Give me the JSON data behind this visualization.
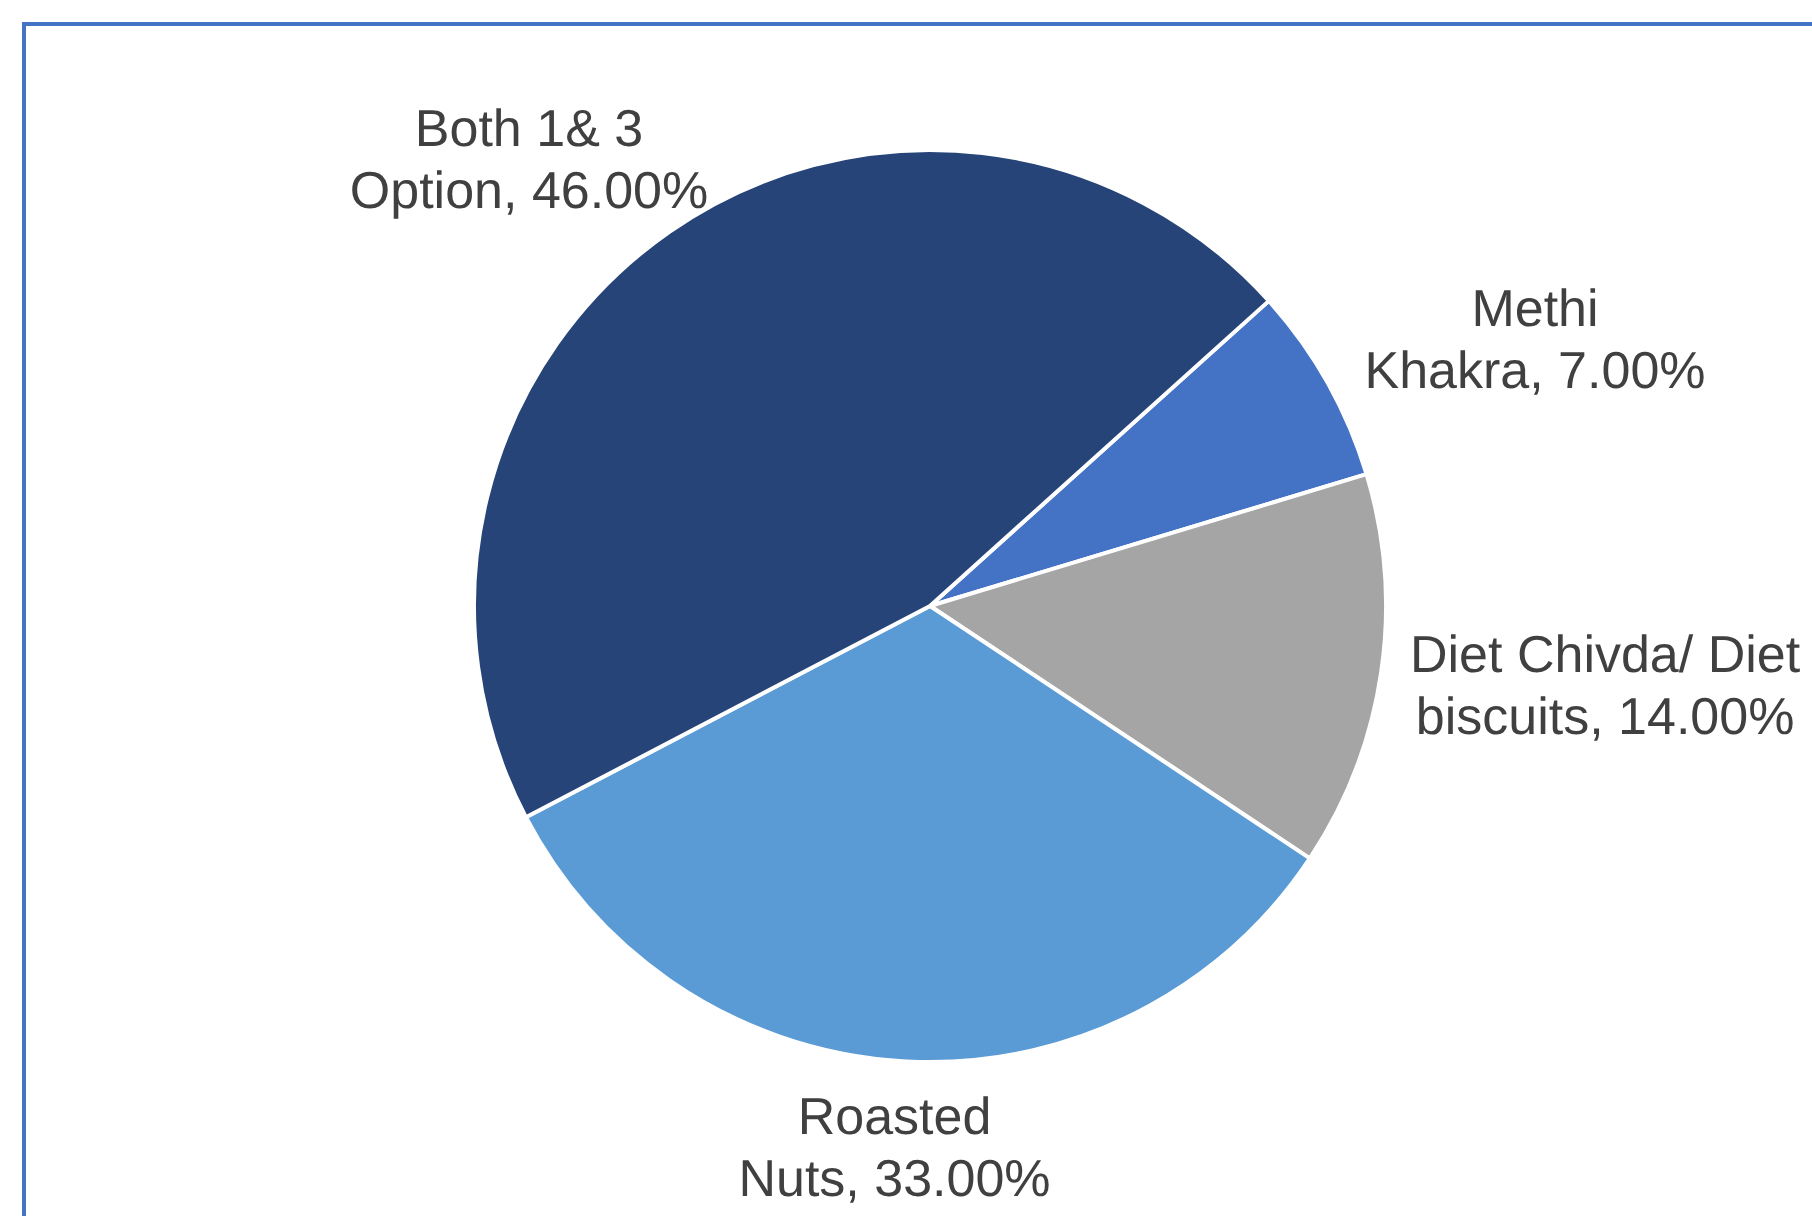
{
  "chart_data": {
    "type": "pie",
    "categories": [
      "Methi Khakra",
      "Diet Chivda/ Diet biscuits",
      "Roasted Nuts",
      "Both 1& 3 Option"
    ],
    "values": [
      7,
      14,
      33,
      46
    ],
    "colors": [
      "#4472c4",
      "#a5a5a5",
      "#5b9bd5",
      "#264478"
    ],
    "value_labels": [
      "7.00%",
      "14.00%",
      "33.00%",
      "46.00%"
    ]
  }
}
